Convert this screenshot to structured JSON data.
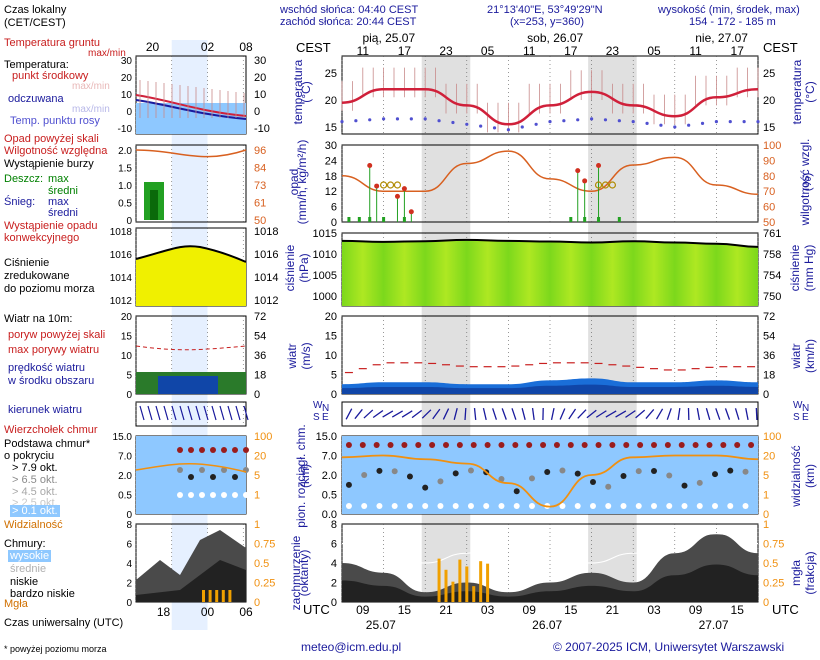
{
  "header": {
    "sunrise": "wschód słońca: 04:40 CEST",
    "sunset": "zachód słońca: 20:44 CEST",
    "coords": "21°13'40\"E, 53°49'29\"N",
    "grid": "(x=253, y=360)",
    "height_title": "wysokość (min, środek, max)",
    "height_values": "154 - 172 - 185 m",
    "cest": "CEST",
    "utc": "UTC"
  },
  "days_top": [
    "pią, 25.07",
    "sob, 26.07",
    "nie, 27.07"
  ],
  "days_bottom": [
    "25.07",
    "26.07",
    "27.07"
  ],
  "hours_cest": [
    "11",
    "17",
    "23",
    "05",
    "11",
    "17",
    "23",
    "05",
    "11",
    "17"
  ],
  "hours_utc": [
    "09",
    "15",
    "21",
    "03",
    "09",
    "15",
    "21",
    "03",
    "09",
    "15"
  ],
  "legend": {
    "time_label": "Czas lokalny",
    "time_sub": "(CET/CEST)",
    "time_ticks_top": [
      "20",
      "02",
      "08"
    ],
    "time_ticks_bottom": [
      "18",
      "00",
      "06"
    ],
    "utc_label": "Czas uniwersalny (UTC)",
    "temp_soil": "Temperatura gruntu",
    "temp_soil_sub": "max/min",
    "temp_title": "Temperatura:",
    "temp_mid": "punkt środkowy",
    "temp_maxmin": "max/min",
    "temp_perceived": "odczuwana",
    "temp_perceived_sub": "max/min",
    "temp_dew": "Temp. punktu rosy",
    "precip_above": "Opad powyżej skali",
    "humidity": "Wilgotność względna",
    "storm": "Wystąpienie burzy",
    "rain": "Deszcz:",
    "rain_max": "max",
    "rain_mid": "średni",
    "snow": "Śnieg:",
    "snow_max": "max",
    "snow_mid": "średni",
    "precip_conv": "Wystąpienie opadu",
    "precip_conv2": "konwekcyjnego",
    "pressure_1": "Ciśnienie",
    "pressure_2": "zredukowane",
    "pressure_3": "do poziomu morza",
    "wind_title": "Wiatr na 10m:",
    "gust_above": "poryw powyżej skali",
    "gust_max": "max porywy wiatru",
    "wind_speed": "prędkość wiatru",
    "wind_speed_sub": "w środku obszaru",
    "wind_dir": "kierunek wiatru",
    "hail": "Wierzchołek chmur",
    "cloud_base": "Podstawa chmur*",
    "cloud_cover": "o pokryciu",
    "okt_79": "> 7.9 okt.",
    "okt_65": "> 6.5 okt.",
    "okt_45": "> 4.5 okt.",
    "okt_25": "> 2.5 okt.",
    "okt_01": "> 0.1 okt.",
    "visibility": "Widzialność",
    "clouds": "Chmury:",
    "cl_high": "wysokie",
    "cl_mid": "średnie",
    "cl_low": "niskie",
    "cl_vlow": "bardzo niskie",
    "fog": "Mgła",
    "footnote": "* powyżej poziomu morza"
  },
  "left_axes": {
    "temp_l": [
      "30",
      "20",
      "10",
      "0",
      "-10"
    ],
    "temp_r": [
      "30",
      "20",
      "10",
      "0",
      "-10"
    ],
    "precip_l": [
      "2.0",
      "1.5",
      "1.0",
      "0.5",
      "0"
    ],
    "precip_r": [
      "96",
      "84",
      "73",
      "61",
      "50"
    ],
    "press_l": [
      "1018",
      "1016",
      "1014",
      "1012"
    ],
    "press_r": [
      "1018",
      "1016",
      "1014",
      "1012"
    ],
    "wind_l": [
      "20",
      "15",
      "10",
      "5",
      "0"
    ],
    "wind_r": [
      "72",
      "54",
      "36",
      "18",
      "0"
    ],
    "cloud_l": [
      "15.0",
      "7.0",
      "2.0",
      "0.5",
      "0"
    ],
    "cloud_r": [
      "100",
      "20",
      "5",
      "1",
      ""
    ],
    "cl_l": [
      "8",
      "6",
      "4",
      "2",
      "0"
    ],
    "cl_r": [
      "1",
      "0.75",
      "0.5",
      "0.25",
      "0"
    ]
  },
  "panel_labels": {
    "temp": "temperatura",
    "temp_unit": "(°C)",
    "precip": "opad",
    "precip_unit": "(mm/h, kg/m²/h)",
    "humid": "wilgotność wzgl.",
    "humid_unit": "(%)",
    "press": "ciśnienie",
    "press_unit": "(hPa)",
    "press_unit_r": "(mm Hg)",
    "wind": "wiatr",
    "wind_unit": "(m/s)",
    "wind_unit_r": "(km/h)",
    "cloudbase": "pion. rozciągł. chm.",
    "cloudbase_unit": "(km)",
    "vis": "widzialność",
    "vis_unit": "(km)",
    "clouds": "zachmurzenie",
    "clouds_unit": "(oktanty)",
    "fog": "mgła",
    "fog_unit": "(frakcja)"
  },
  "axes": {
    "temp_l": [
      "25",
      "20",
      "15"
    ],
    "temp_r": [
      "25",
      "20",
      "15"
    ],
    "precip_l": [
      "30",
      "24",
      "18",
      "12",
      "6",
      "0"
    ],
    "precip_r": [
      "100",
      "90",
      "80",
      "70",
      "60",
      "50"
    ],
    "press_l": [
      "1015",
      "1010",
      "1005",
      "1000"
    ],
    "press_r": [
      "761",
      "758",
      "754",
      "750"
    ],
    "wind_l": [
      "20",
      "15",
      "10",
      "5",
      "0"
    ],
    "wind_r": [
      "72",
      "54",
      "36",
      "18",
      "0"
    ],
    "cloud_l": [
      "15.0",
      "7.0",
      "2.0",
      "0.5",
      "0.0"
    ],
    "cloud_r": [
      "100",
      "20",
      "5",
      "1",
      "0"
    ],
    "cl_l": [
      "8",
      "6",
      "4",
      "2",
      "0"
    ],
    "cl_r": [
      "1",
      "0.75",
      "0.5",
      "0.25",
      "0"
    ]
  },
  "compass": {
    "n": "N",
    "w": "W",
    "e": "E",
    "s": "S"
  },
  "footer": {
    "email": "meteo@icm.edu.pl",
    "copyright": "© 2007-2025 ICM, Uniwersytet Warszawski"
  },
  "colors": {
    "night": "#e0e0e0",
    "temp": "#d0203a",
    "dew": "#5050d0",
    "humidity": "#d86020",
    "rain": "#22a022",
    "pressure_fill": "#ccee22",
    "wind_fill": "#1a6ed8",
    "sky": "#8ec8ff",
    "visibility": "#f09010"
  },
  "chart_data": [
    {
      "type": "line",
      "title": "temperatura (°C)",
      "x_hours_utc": [
        0,
        6,
        12,
        18,
        24,
        30,
        36,
        42,
        48,
        54,
        60
      ],
      "ylim": [
        14,
        28
      ],
      "series": [
        {
          "name": "temperatura",
          "values": [
            19.5,
            22,
            22,
            19,
            15.5,
            19,
            21.5,
            19,
            17,
            20.5,
            22
          ]
        },
        {
          "name": "punkt rosy",
          "values": [
            16,
            16.5,
            16.5,
            15.5,
            14.5,
            16,
            16.5,
            16,
            15,
            16,
            16
          ]
        }
      ]
    },
    {
      "type": "line",
      "title": "wilgotność wzgl. (%)",
      "ylim": [
        50,
        100
      ],
      "series": [
        {
          "name": "wilgotność",
          "values": [
            80,
            70,
            70,
            88,
            96,
            78,
            70,
            87,
            92,
            74,
            68
          ]
        }
      ]
    },
    {
      "type": "area",
      "title": "ciśnienie (hPa)",
      "ylim": [
        995,
        1015
      ],
      "series": [
        {
          "name": "ciśnienie",
          "values": [
            1012.5,
            1012.2,
            1012.4,
            1012.8,
            1012.5,
            1012.3,
            1012.0,
            1012.4,
            1012.0,
            1011.6,
            1010.6
          ]
        }
      ]
    },
    {
      "type": "area",
      "title": "wiatr (m/s)",
      "ylim": [
        0,
        20
      ],
      "series": [
        {
          "name": "prędkość",
          "values": [
            2.5,
            3,
            3,
            2.5,
            2.5,
            3.5,
            4,
            3,
            3,
            3.5,
            3
          ]
        },
        {
          "name": "porywy",
          "values": [
            5,
            8,
            8,
            7,
            7,
            8,
            8,
            7,
            6,
            7,
            7
          ]
        }
      ]
    },
    {
      "type": "area",
      "title": "zachmurzenie (oktanty)",
      "ylim": [
        0,
        8
      ],
      "series": [
        {
          "name": "niskie",
          "values": [
            4,
            3,
            1,
            2,
            1,
            2,
            3,
            2,
            5,
            7,
            5
          ]
        }
      ]
    }
  ]
}
